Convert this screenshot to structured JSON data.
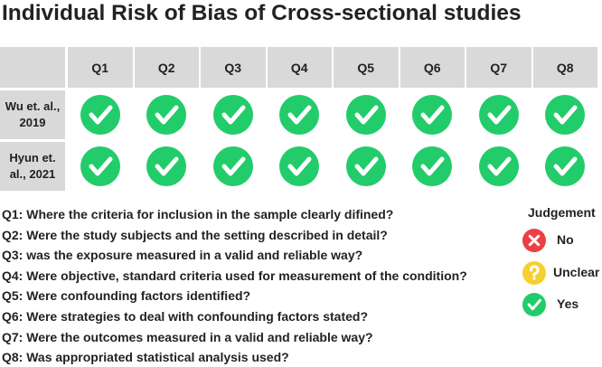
{
  "title": "Individual Risk of Bias of Cross-sectional studies",
  "table": {
    "columns": [
      "Q1",
      "Q2",
      "Q3",
      "Q4",
      "Q5",
      "Q6",
      "Q7",
      "Q8"
    ],
    "rows": [
      {
        "label": "Wu et. al., 2019",
        "judgements": [
          "Yes",
          "Yes",
          "Yes",
          "Yes",
          "Yes",
          "Yes",
          "Yes",
          "Yes"
        ]
      },
      {
        "label": "Hyun et. al., 2021",
        "judgements": [
          "Yes",
          "Yes",
          "Yes",
          "Yes",
          "Yes",
          "Yes",
          "Yes",
          "Yes"
        ]
      }
    ]
  },
  "questions": [
    "Q1: Where the criteria for inclusion in the sample clearly difined?",
    "Q2: Were the study subjects and the setting described in detail?",
    "Q3: was the exposure measured in a valid and reliable way?",
    "Q4: Were objective, standard criteria used for measurement of the condition?",
    "Q5: Were confounding factors identified?",
    "Q6: Were strategies to deal with confounding factors stated?",
    "Q7: Were the outcomes measured in a valid and reliable way?",
    "Q8: Was appropriated statistical analysis used?"
  ],
  "legend": {
    "title": "Judgement",
    "items": [
      {
        "label": "No",
        "color": "#ec3f46"
      },
      {
        "label": "Unclear",
        "color": "#f6d030"
      },
      {
        "label": "Yes",
        "color": "#22cc6a"
      }
    ]
  }
}
